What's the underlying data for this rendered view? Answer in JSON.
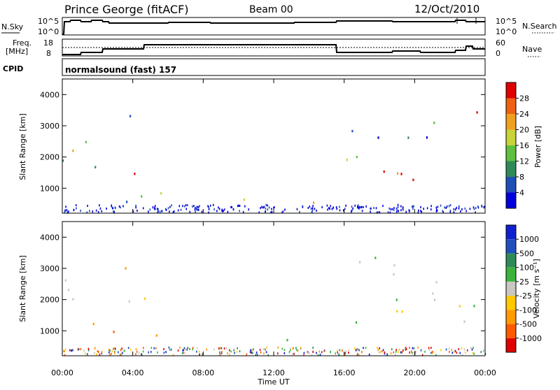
{
  "header": {
    "station": "Prince George (fitACF)",
    "beam": "Beam 00",
    "date": "12/Oct/2010"
  },
  "noise_panel": {
    "left_label": "N.Sky",
    "right_label": "N.Search",
    "left_ticks": [
      "10^5",
      "10^0"
    ],
    "right_ticks": [
      "10^5",
      "10^0"
    ]
  },
  "freq_panel": {
    "left_label_1": "Freq.",
    "left_label_2": "[MHz]",
    "left_ticks": [
      "18",
      "8"
    ],
    "right_ticks": [
      "60",
      "0"
    ],
    "right_label": "Nave"
  },
  "cpid": {
    "label": "CPID",
    "value": "normalsound (fast) 157"
  },
  "colors": {
    "power_scale": [
      "#0000dd",
      "#1e4fb8",
      "#2e8b57",
      "#5fbf3f",
      "#c8d23a",
      "#f0a020",
      "#f06010",
      "#e00000"
    ],
    "velocity_scale": [
      "#e00000",
      "#ff5a00",
      "#ff9a00",
      "#ffc800",
      "#c8c8c0",
      "#3cb43c",
      "#2e8b57",
      "#2050c0",
      "#1020d0"
    ]
  },
  "chart_data": [
    {
      "type": "heatmap",
      "name": "power",
      "ylabel": "Slant Range [km]",
      "yticks": [
        "1000",
        "2000",
        "3000",
        "4000"
      ],
      "ylim": [
        200,
        4500
      ],
      "xlim": [
        0,
        24
      ],
      "colorbar_label": "Power [dB]",
      "colorbar_ticks": [
        "4",
        "8",
        "12",
        "16",
        "20",
        "24",
        "28"
      ],
      "colorbar_range": [
        0,
        30
      ],
      "regions": [
        {
          "x": [
            0,
            1.2
          ],
          "y": [
            1900,
            3500
          ],
          "level": 0.5
        },
        {
          "x": [
            1.2,
            2.4
          ],
          "y": [
            2000,
            2900
          ],
          "level": 0.45
        },
        {
          "x": [
            0.8,
            2.2
          ],
          "y": [
            1200,
            1800
          ],
          "level": 0.3
        },
        {
          "x": [
            2.8,
            4.0
          ],
          "y": [
            400,
            1200
          ],
          "level": 0.45
        },
        {
          "x": [
            3.8,
            6.2
          ],
          "y": [
            700,
            1700
          ],
          "level": 0.65
        },
        {
          "x": [
            3.4,
            4.8
          ],
          "y": [
            2900,
            3400
          ],
          "level": 0.25
        },
        {
          "x": [
            9.8,
            12.2
          ],
          "y": [
            500,
            900
          ],
          "level": 0.45
        },
        {
          "x": [
            12.2,
            14.6
          ],
          "y": [
            450,
            750
          ],
          "level": 0.5
        },
        {
          "x": [
            15.8,
            18.0
          ],
          "y": [
            1600,
            2400
          ],
          "level": 0.55
        },
        {
          "x": [
            18.0,
            22.8
          ],
          "y": [
            1100,
            1800
          ],
          "level": 0.8
        },
        {
          "x": [
            16.2,
            21.4
          ],
          "y": [
            2500,
            3300
          ],
          "level": 0.25
        },
        {
          "x": [
            22.5,
            23.8
          ],
          "y": [
            2700,
            3500
          ],
          "level": 0.7
        }
      ]
    },
    {
      "type": "heatmap",
      "name": "velocity",
      "ylabel": "Slant Range [km]",
      "yticks": [
        "1000",
        "2000",
        "3000",
        "4000"
      ],
      "ylim": [
        200,
        4500
      ],
      "xlim": [
        0,
        24
      ],
      "xticks": [
        "00:00",
        "04:00",
        "08:00",
        "12:00",
        "16:00",
        "20:00",
        "00:00"
      ],
      "xlabel": "Time UT",
      "colorbar_label": "Velocity [m s⁻¹]",
      "colorbar_ticks": [
        "-1000",
        "-500",
        "-100",
        "-25",
        "25",
        "100",
        "500",
        "1000"
      ],
      "regions": [
        {
          "x": [
            0,
            2.4
          ],
          "y": [
            1900,
            2900
          ],
          "level": 0.5
        },
        {
          "x": [
            0.5,
            2.0
          ],
          "y": [
            1200,
            1700
          ],
          "level": 0.22
        },
        {
          "x": [
            2.8,
            4.6
          ],
          "y": [
            400,
            1100
          ],
          "level": 0.22
        },
        {
          "x": [
            4.6,
            6.2
          ],
          "y": [
            500,
            900
          ],
          "level": 0.25
        },
        {
          "x": [
            3.4,
            6.0
          ],
          "y": [
            1400,
            2200
          ],
          "level": 0.5
        },
        {
          "x": [
            3.4,
            4.8
          ],
          "y": [
            2900,
            3400
          ],
          "level": 0.22
        },
        {
          "x": [
            9.8,
            14.6
          ],
          "y": [
            450,
            850
          ],
          "level": 0.62
        },
        {
          "x": [
            15.8,
            23.8
          ],
          "y": [
            1300,
            2300
          ],
          "level": 0.5
        },
        {
          "x": [
            16.2,
            21.4
          ],
          "y": [
            2500,
            3400
          ],
          "level": 0.5
        }
      ]
    }
  ]
}
